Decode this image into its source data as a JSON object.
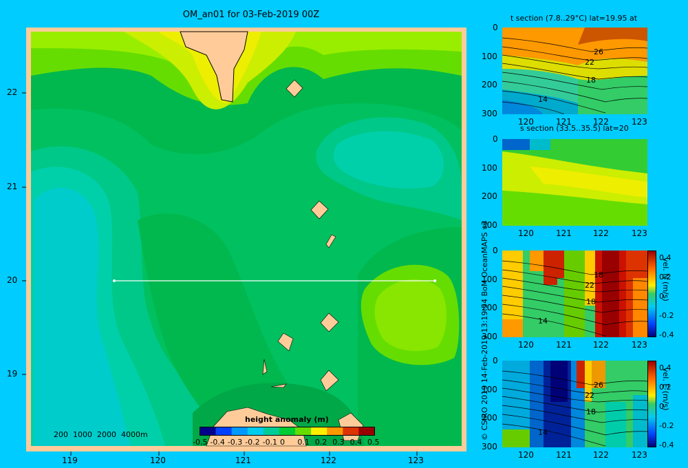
{
  "main_map": {
    "title": "OM_an01 for 03-Feb-2019 00Z",
    "x_ticks": [
      "119",
      "120",
      "121",
      "122",
      "123"
    ],
    "y_ticks": [
      "22",
      "21",
      "20",
      "19"
    ],
    "depth_legend": "200  1000  2000  4000m",
    "colorbar": {
      "label": "height anomaly (m)",
      "ticks": [
        "-0.5",
        "-0.4",
        "-0.3",
        "-0.2",
        "-0.1",
        "0",
        "0.1",
        "0.2",
        "0.3",
        "0.4",
        "0.5"
      ],
      "colors": [
        "#00008b",
        "#0040ff",
        "#0099ff",
        "#00ccee",
        "#00cc99",
        "#00cc33",
        "#66dd00",
        "#ffee00",
        "#ff9900",
        "#dd3300",
        "#990000"
      ]
    },
    "section_line": {
      "lat": 20,
      "lon_start": 119.5,
      "lon_end": 123.2
    }
  },
  "sections": [
    {
      "name": "temperature",
      "title": "t section (7.8..29°C) lat=19.95 at",
      "y_ticks": [
        "0",
        "100",
        "200",
        "300"
      ],
      "x_ticks": [
        "120",
        "121",
        "122",
        "123"
      ],
      "contour_labels": [
        "26",
        "22",
        "18",
        "14"
      ]
    },
    {
      "name": "salinity",
      "title": "s section (33.5..35.5) lat=20",
      "y_ticks": [
        "0",
        "100",
        "200",
        "300"
      ],
      "x_ticks": [
        "120",
        "121",
        "122",
        "123"
      ],
      "contour_labels": []
    },
    {
      "name": "north-velocity",
      "title": "",
      "y_ticks": [
        "0",
        "100",
        "200",
        "300"
      ],
      "x_ticks": [
        "120",
        "121",
        "122",
        "123"
      ],
      "contour_labels": [
        "18",
        "22",
        "18",
        "14"
      ],
      "colorbar_label": "vel. N (m/s)",
      "colorbar_ticks": [
        "0.4",
        "0.2",
        "0",
        "-0.2",
        "-0.4"
      ]
    },
    {
      "name": "east-velocity",
      "title": "",
      "y_ticks": [
        "0",
        "100",
        "200",
        "300"
      ],
      "x_ticks": [
        "120",
        "121",
        "122",
        "123"
      ],
      "contour_labels": [
        "26",
        "22",
        "18",
        "14"
      ],
      "colorbar_label": "vel. E (m/s)",
      "colorbar_ticks": [
        "0.4",
        "0.2",
        "0",
        "-0.2",
        "-0.4"
      ]
    }
  ],
  "credit": "© CSIRO 2019  14-Feb-2019 13:19:54 BoM OceanMAPS v3"
}
